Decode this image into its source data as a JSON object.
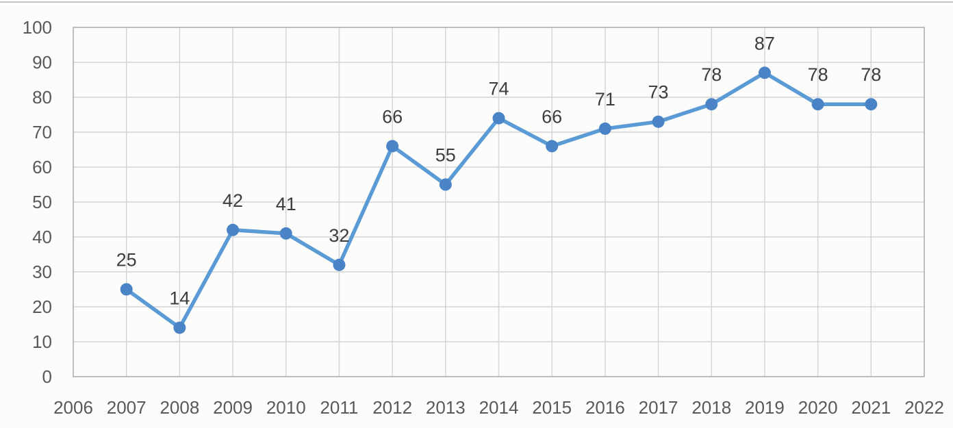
{
  "chart_data": {
    "type": "line",
    "title": "",
    "xlabel": "",
    "ylabel": "",
    "x_ticks": [
      "2006",
      "2007",
      "2008",
      "2009",
      "2010",
      "2011",
      "2012",
      "2013",
      "2014",
      "2015",
      "2016",
      "2017",
      "2018",
      "2019",
      "2020",
      "2021",
      "2022"
    ],
    "y_ticks": [
      0,
      10,
      20,
      30,
      40,
      50,
      60,
      70,
      80,
      90,
      100
    ],
    "xlim": [
      2006,
      2022
    ],
    "ylim": [
      0,
      100
    ],
    "grid": "both",
    "legend": "none",
    "data_labels_visible": true,
    "series": [
      {
        "name": "series-1",
        "x": [
          2007,
          2008,
          2009,
          2010,
          2011,
          2012,
          2013,
          2014,
          2015,
          2016,
          2017,
          2018,
          2019,
          2020,
          2021
        ],
        "values": [
          25,
          14,
          42,
          41,
          32,
          66,
          55,
          74,
          66,
          71,
          73,
          78,
          87,
          78,
          78
        ]
      }
    ],
    "colors": {
      "line": "#5B9BD5",
      "marker": "#4A84C6",
      "grid": "#d4d4d4",
      "plot_border": "#b3b3b3",
      "tick_label": "#595959",
      "data_label": "#3d3d3d",
      "background": "#fcfcfb",
      "top_rule": "#c2c2c2"
    }
  }
}
